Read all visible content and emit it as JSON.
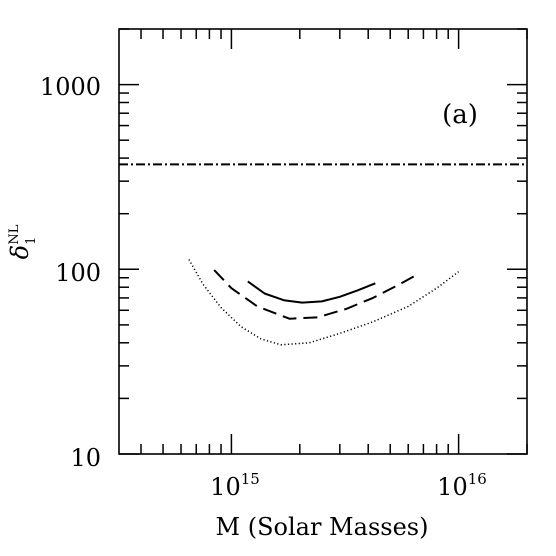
{
  "chart_data": {
    "type": "line",
    "panel_label": "(a)",
    "xlabel": "M (Solar Masses)",
    "ylabel": {
      "base": "δ",
      "subscript": "1",
      "superscript": "NL"
    },
    "xscale": "log",
    "yscale": "log",
    "xlim": [
      320000000000000.0,
      2e+16
    ],
    "ylim": [
      10,
      2000
    ],
    "x_tick_labels": [
      {
        "value": 1000000000000000.0,
        "mantissa": "10",
        "exponent": "15"
      },
      {
        "value": 1e+16,
        "mantissa": "10",
        "exponent": "16"
      }
    ],
    "y_tick_labels": [
      {
        "value": 10,
        "text": "10"
      },
      {
        "value": 100,
        "text": "100"
      },
      {
        "value": 1000,
        "text": "1000"
      }
    ],
    "legend": "none",
    "grid": false,
    "series": [
      {
        "style": "dash-dot",
        "x": [
          320000000000000.0,
          2e+16
        ],
        "y": [
          370,
          370
        ]
      },
      {
        "style": "solid",
        "x": [
          1180000000000000.0,
          1400000000000000.0,
          1700000000000000.0,
          2050000000000000.0,
          2500000000000000.0,
          3000000000000000.0,
          3600000000000000.0,
          4300000000000000.0
        ],
        "y": [
          86,
          74,
          68,
          66,
          67,
          71,
          77,
          84
        ]
      },
      {
        "style": "dashed",
        "x": [
          840000000000000.0,
          1000000000000000.0,
          1300000000000000.0,
          1800000000000000.0,
          2400000000000000.0,
          3200000000000000.0,
          4200000000000000.0,
          5400000000000000.0,
          6600000000000000.0
        ],
        "y": [
          99,
          79,
          63,
          54,
          55,
          61,
          70,
          82,
          94
        ]
      },
      {
        "style": "dotted",
        "x": [
          650000000000000.0,
          750000000000000.0,
          900000000000000.0,
          1100000000000000.0,
          1350000000000000.0,
          1650000000000000.0,
          2200000000000000.0,
          3000000000000000.0,
          4200000000000000.0,
          6000000000000000.0,
          8000000000000000.0,
          1e+16
        ],
        "y": [
          113,
          83,
          62,
          49,
          42,
          39,
          40,
          45,
          52,
          63,
          79,
          97
        ]
      }
    ]
  }
}
